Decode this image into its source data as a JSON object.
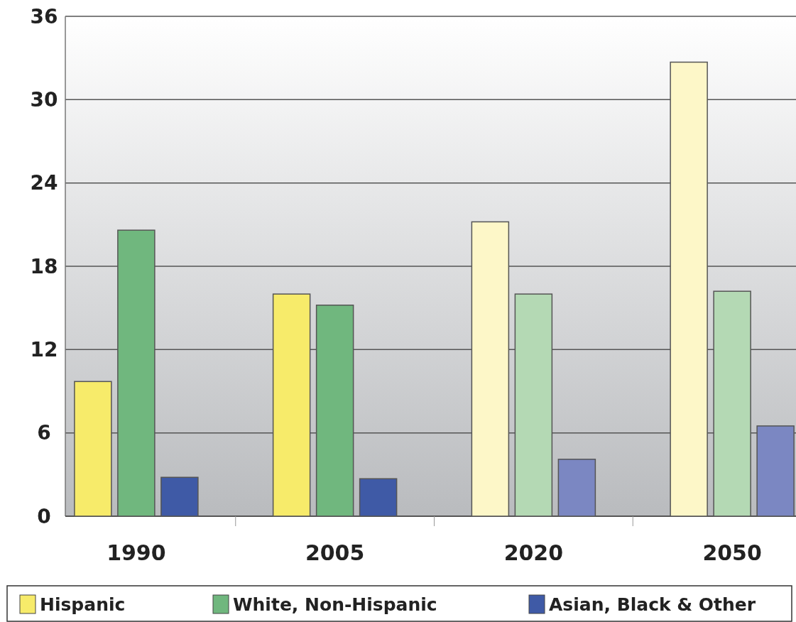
{
  "chart_data": {
    "type": "bar",
    "categories": [
      "1990",
      "2005",
      "2020",
      "2050"
    ],
    "series": [
      {
        "name": "Hispanic",
        "color": "#f7eb6a",
        "colors": [
          "#f7eb6a",
          "#f7eb6a",
          "#fdf7c8",
          "#fdf7c8"
        ],
        "values": [
          9.7,
          16.0,
          21.2,
          32.7
        ]
      },
      {
        "name": "White, Non-Hispanic",
        "color": "#70b77e",
        "colors": [
          "#70b77e",
          "#70b77e",
          "#b4d9b4",
          "#b4d9b4"
        ],
        "values": [
          20.6,
          15.2,
          16.0,
          16.2
        ]
      },
      {
        "name": "Asian, Black & Other",
        "color": "#3f5aa6",
        "colors": [
          "#3f5aa6",
          "#3f5aa6",
          "#7b87c2",
          "#7b87c2"
        ],
        "values": [
          2.8,
          2.7,
          4.1,
          6.5
        ]
      }
    ],
    "ylim": [
      0,
      36
    ],
    "yticks": [
      0,
      6,
      12,
      18,
      24,
      30,
      36
    ],
    "grid": "y",
    "legend": "bottom"
  }
}
